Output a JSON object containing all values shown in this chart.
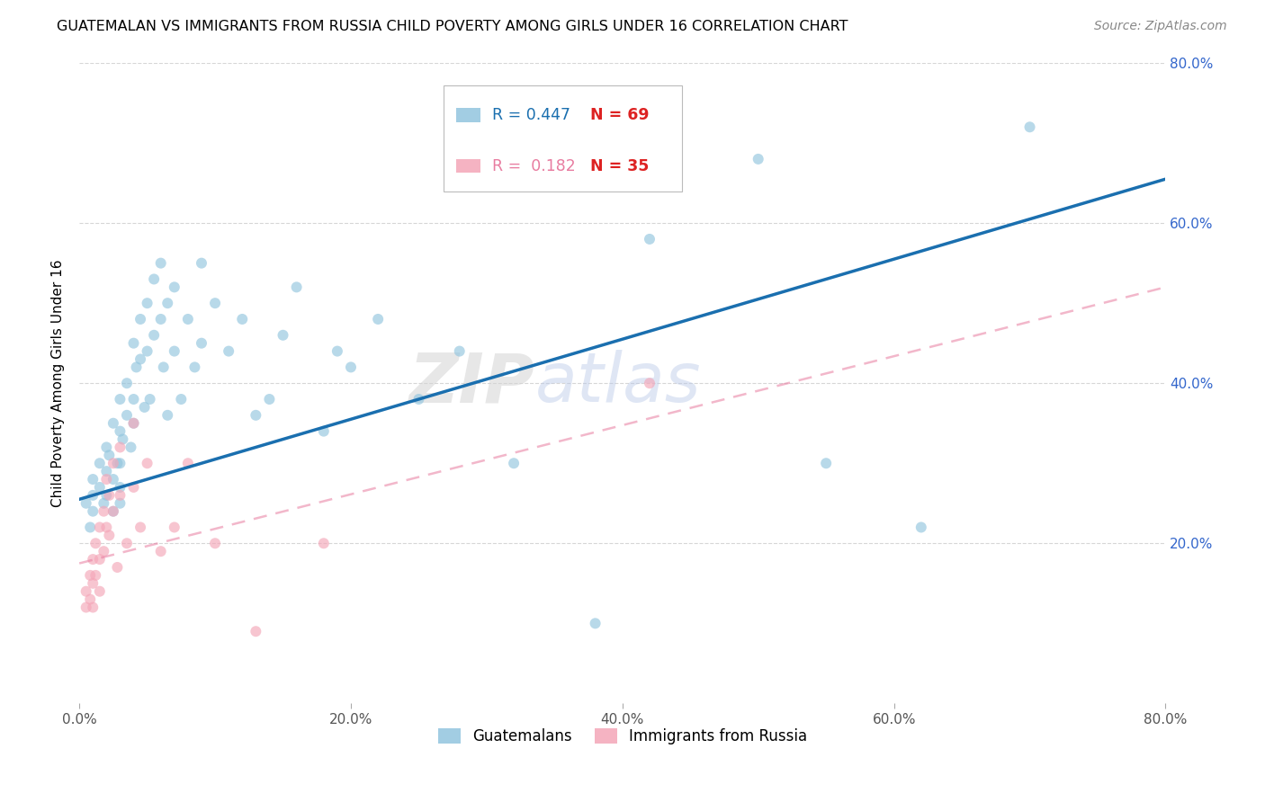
{
  "title": "GUATEMALAN VS IMMIGRANTS FROM RUSSIA CHILD POVERTY AMONG GIRLS UNDER 16 CORRELATION CHART",
  "source": "Source: ZipAtlas.com",
  "ylabel": "Child Poverty Among Girls Under 16",
  "xlim": [
    0.0,
    0.8
  ],
  "ylim": [
    0.0,
    0.8
  ],
  "xticks": [
    0.0,
    0.2,
    0.4,
    0.6,
    0.8
  ],
  "yticks": [
    0.2,
    0.4,
    0.6,
    0.8
  ],
  "xticklabels": [
    "0.0%",
    "20.0%",
    "40.0%",
    "60.0%",
    "80.0%"
  ],
  "yticklabels": [
    "20.0%",
    "40.0%",
    "60.0%",
    "80.0%"
  ],
  "blue_color": "#92c5de",
  "pink_color": "#f4a6b8",
  "blue_line_color": "#1a6faf",
  "pink_line_color": "#e87ca0",
  "right_axis_color": "#3366cc",
  "legend_R1": "R = 0.447",
  "legend_N1": "N = 69",
  "legend_R2": "R =  0.182",
  "legend_N2": "N = 35",
  "label1": "Guatemalans",
  "label2": "Immigrants from Russia",
  "watermark_zip": "ZIP",
  "watermark_atlas": "atlas",
  "blue_scatter_x": [
    0.005,
    0.008,
    0.01,
    0.01,
    0.01,
    0.015,
    0.015,
    0.018,
    0.02,
    0.02,
    0.02,
    0.022,
    0.025,
    0.025,
    0.025,
    0.028,
    0.03,
    0.03,
    0.03,
    0.03,
    0.03,
    0.032,
    0.035,
    0.035,
    0.038,
    0.04,
    0.04,
    0.04,
    0.042,
    0.045,
    0.045,
    0.048,
    0.05,
    0.05,
    0.052,
    0.055,
    0.055,
    0.06,
    0.06,
    0.062,
    0.065,
    0.065,
    0.07,
    0.07,
    0.075,
    0.08,
    0.085,
    0.09,
    0.09,
    0.1,
    0.11,
    0.12,
    0.13,
    0.14,
    0.15,
    0.16,
    0.18,
    0.19,
    0.2,
    0.22,
    0.25,
    0.28,
    0.32,
    0.38,
    0.42,
    0.5,
    0.55,
    0.62,
    0.7
  ],
  "blue_scatter_y": [
    0.25,
    0.22,
    0.28,
    0.26,
    0.24,
    0.3,
    0.27,
    0.25,
    0.32,
    0.29,
    0.26,
    0.31,
    0.35,
    0.28,
    0.24,
    0.3,
    0.38,
    0.34,
    0.3,
    0.27,
    0.25,
    0.33,
    0.4,
    0.36,
    0.32,
    0.45,
    0.38,
    0.35,
    0.42,
    0.48,
    0.43,
    0.37,
    0.5,
    0.44,
    0.38,
    0.53,
    0.46,
    0.55,
    0.48,
    0.42,
    0.5,
    0.36,
    0.52,
    0.44,
    0.38,
    0.48,
    0.42,
    0.55,
    0.45,
    0.5,
    0.44,
    0.48,
    0.36,
    0.38,
    0.46,
    0.52,
    0.34,
    0.44,
    0.42,
    0.48,
    0.38,
    0.44,
    0.3,
    0.1,
    0.58,
    0.68,
    0.3,
    0.22,
    0.72
  ],
  "pink_scatter_x": [
    0.005,
    0.005,
    0.008,
    0.008,
    0.01,
    0.01,
    0.01,
    0.012,
    0.012,
    0.015,
    0.015,
    0.015,
    0.018,
    0.018,
    0.02,
    0.02,
    0.022,
    0.022,
    0.025,
    0.025,
    0.028,
    0.03,
    0.03,
    0.035,
    0.04,
    0.04,
    0.045,
    0.05,
    0.06,
    0.07,
    0.08,
    0.1,
    0.13,
    0.18,
    0.42
  ],
  "pink_scatter_y": [
    0.14,
    0.12,
    0.16,
    0.13,
    0.18,
    0.15,
    0.12,
    0.2,
    0.16,
    0.22,
    0.18,
    0.14,
    0.24,
    0.19,
    0.28,
    0.22,
    0.26,
    0.21,
    0.3,
    0.24,
    0.17,
    0.32,
    0.26,
    0.2,
    0.35,
    0.27,
    0.22,
    0.3,
    0.19,
    0.22,
    0.3,
    0.2,
    0.09,
    0.2,
    0.4
  ],
  "blue_line_y_start": 0.255,
  "blue_line_y_end": 0.655,
  "pink_line_y_start": 0.175,
  "pink_line_y_end": 0.52,
  "marker_size": 75,
  "alpha": 0.65,
  "grid_color": "#cccccc",
  "background_color": "#ffffff",
  "title_fontsize": 11.5,
  "axis_label_fontsize": 11,
  "tick_fontsize": 11,
  "source_fontsize": 10
}
